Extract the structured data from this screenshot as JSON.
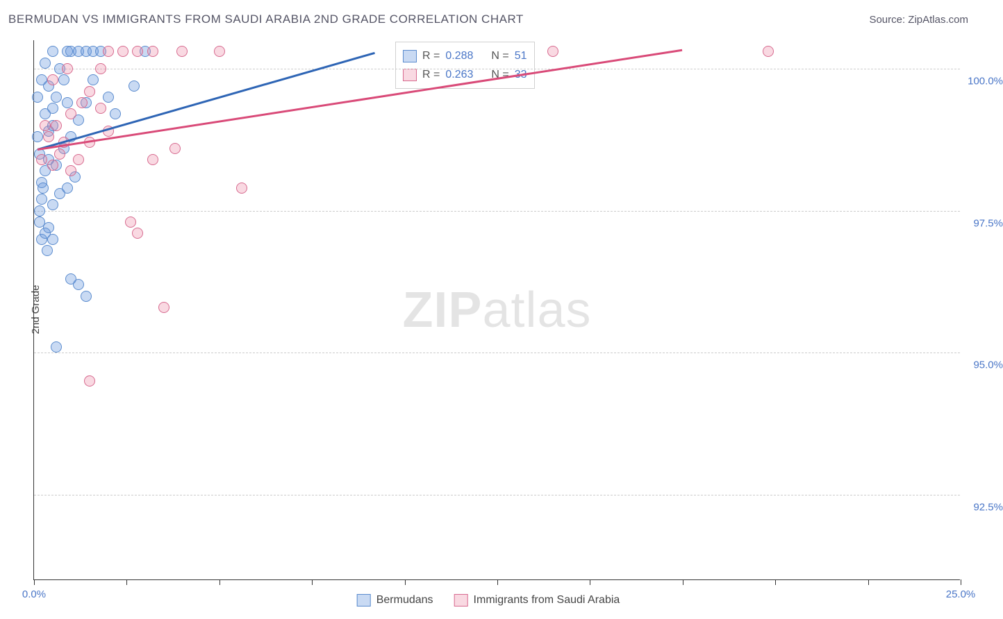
{
  "header": {
    "title": "BERMUDAN VS IMMIGRANTS FROM SAUDI ARABIA 2ND GRADE CORRELATION CHART",
    "source": "Source: ZipAtlas.com"
  },
  "axes": {
    "y_title": "2nd Grade",
    "x_min": 0.0,
    "x_max": 25.0,
    "y_min": 91.0,
    "y_max": 100.5,
    "x_ticks": [
      {
        "v": 0.0,
        "label": "0.0%"
      },
      {
        "v": 2.5,
        "label": ""
      },
      {
        "v": 5.0,
        "label": ""
      },
      {
        "v": 7.5,
        "label": ""
      },
      {
        "v": 10.0,
        "label": ""
      },
      {
        "v": 12.5,
        "label": ""
      },
      {
        "v": 15.0,
        "label": ""
      },
      {
        "v": 17.5,
        "label": ""
      },
      {
        "v": 20.0,
        "label": ""
      },
      {
        "v": 22.5,
        "label": ""
      },
      {
        "v": 25.0,
        "label": "25.0%"
      }
    ],
    "y_gridlines": [
      {
        "v": 92.5,
        "label": "92.5%"
      },
      {
        "v": 95.0,
        "label": "95.0%"
      },
      {
        "v": 97.5,
        "label": "97.5%"
      },
      {
        "v": 100.0,
        "label": "100.0%"
      }
    ]
  },
  "series": {
    "a": {
      "name": "Bermudans",
      "fill": "rgba(100,150,220,0.35)",
      "stroke": "#5a8bce",
      "line": "#2e65b5",
      "R": "0.288",
      "N": "51",
      "trend": {
        "x1": 0.1,
        "y1": 98.6,
        "x2": 9.2,
        "y2": 100.3
      },
      "points": [
        [
          0.15,
          97.5
        ],
        [
          0.2,
          97.7
        ],
        [
          0.2,
          98.0
        ],
        [
          0.3,
          98.2
        ],
        [
          0.25,
          97.9
        ],
        [
          0.15,
          97.3
        ],
        [
          0.4,
          98.4
        ],
        [
          0.4,
          98.9
        ],
        [
          0.5,
          99.0
        ],
        [
          0.5,
          99.3
        ],
        [
          0.6,
          99.5
        ],
        [
          0.4,
          99.7
        ],
        [
          0.7,
          100.0
        ],
        [
          0.9,
          100.3
        ],
        [
          1.0,
          100.3
        ],
        [
          1.2,
          100.3
        ],
        [
          1.4,
          100.3
        ],
        [
          1.6,
          100.3
        ],
        [
          1.8,
          100.3
        ],
        [
          0.8,
          99.8
        ],
        [
          0.6,
          98.3
        ],
        [
          0.8,
          98.6
        ],
        [
          1.0,
          98.8
        ],
        [
          1.2,
          99.1
        ],
        [
          1.4,
          99.4
        ],
        [
          1.6,
          99.8
        ],
        [
          0.5,
          97.6
        ],
        [
          0.7,
          97.8
        ],
        [
          0.9,
          97.9
        ],
        [
          0.4,
          97.2
        ],
        [
          0.5,
          97.0
        ],
        [
          1.0,
          96.3
        ],
        [
          1.2,
          96.2
        ],
        [
          1.4,
          96.0
        ],
        [
          2.7,
          99.7
        ],
        [
          3.0,
          100.3
        ],
        [
          0.6,
          95.1
        ],
        [
          0.2,
          97.0
        ],
        [
          0.35,
          96.8
        ],
        [
          0.15,
          98.5
        ],
        [
          0.1,
          98.8
        ],
        [
          0.3,
          99.2
        ],
        [
          0.1,
          99.5
        ],
        [
          0.2,
          99.8
        ],
        [
          0.3,
          100.1
        ],
        [
          0.5,
          100.3
        ],
        [
          2.0,
          99.5
        ],
        [
          2.2,
          99.2
        ],
        [
          0.3,
          97.1
        ],
        [
          1.1,
          98.1
        ],
        [
          0.9,
          99.4
        ]
      ]
    },
    "b": {
      "name": "Immigrants from Saudi Arabia",
      "fill": "rgba(235,130,160,0.30)",
      "stroke": "#d76a8f",
      "line": "#d94a78",
      "R": "0.263",
      "N": "33",
      "trend": {
        "x1": 0.1,
        "y1": 98.6,
        "x2": 17.5,
        "y2": 100.35
      },
      "points": [
        [
          0.4,
          98.8
        ],
        [
          0.6,
          99.0
        ],
        [
          0.8,
          98.7
        ],
        [
          1.0,
          99.2
        ],
        [
          1.3,
          99.4
        ],
        [
          1.5,
          99.6
        ],
        [
          1.8,
          100.0
        ],
        [
          2.0,
          100.3
        ],
        [
          2.4,
          100.3
        ],
        [
          2.8,
          100.3
        ],
        [
          3.2,
          100.3
        ],
        [
          3.8,
          98.6
        ],
        [
          1.5,
          98.7
        ],
        [
          1.0,
          98.2
        ],
        [
          1.2,
          98.4
        ],
        [
          3.2,
          98.4
        ],
        [
          14.0,
          100.3
        ],
        [
          4.0,
          100.3
        ],
        [
          2.6,
          97.3
        ],
        [
          2.8,
          97.1
        ],
        [
          1.5,
          94.5
        ],
        [
          5.6,
          97.9
        ],
        [
          19.8,
          100.3
        ],
        [
          0.5,
          98.3
        ],
        [
          0.3,
          99.0
        ],
        [
          1.8,
          99.3
        ],
        [
          0.7,
          98.5
        ],
        [
          3.5,
          95.8
        ],
        [
          2.0,
          98.9
        ],
        [
          0.5,
          99.8
        ],
        [
          0.2,
          98.4
        ],
        [
          5.0,
          100.3
        ],
        [
          0.9,
          100.0
        ]
      ]
    }
  },
  "legend": {
    "R_label": "R =",
    "N_label": "N ="
  },
  "watermark": {
    "part1": "ZIP",
    "part2": "atlas"
  },
  "styling": {
    "grid_color": "#cccccc",
    "axis_color": "#333333",
    "label_color": "#4a76c7",
    "marker_radius": 8
  }
}
